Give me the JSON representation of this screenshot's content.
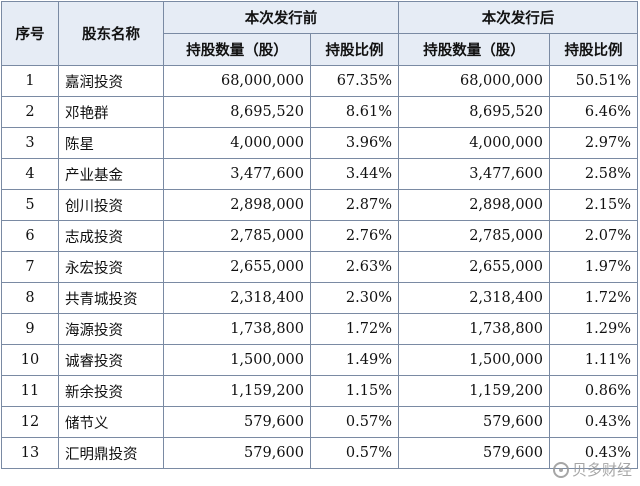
{
  "table": {
    "headers": {
      "no": "序号",
      "name": "股东名称",
      "before": "本次发行前",
      "after": "本次发行后",
      "shares": "持股数量（股）",
      "ratio": "持股比例"
    },
    "rows": [
      {
        "no": "1",
        "name": "嘉润投资",
        "before_shares": "68,000,000",
        "before_ratio": "67.35%",
        "after_shares": "68,000,000",
        "after_ratio": "50.51%"
      },
      {
        "no": "2",
        "name": "邓艳群",
        "before_shares": "8,695,520",
        "before_ratio": "8.61%",
        "after_shares": "8,695,520",
        "after_ratio": "6.46%"
      },
      {
        "no": "3",
        "name": "陈星",
        "before_shares": "4,000,000",
        "before_ratio": "3.96%",
        "after_shares": "4,000,000",
        "after_ratio": "2.97%"
      },
      {
        "no": "4",
        "name": "产业基金",
        "before_shares": "3,477,600",
        "before_ratio": "3.44%",
        "after_shares": "3,477,600",
        "after_ratio": "2.58%"
      },
      {
        "no": "5",
        "name": "创川投资",
        "before_shares": "2,898,000",
        "before_ratio": "2.87%",
        "after_shares": "2,898,000",
        "after_ratio": "2.15%"
      },
      {
        "no": "6",
        "name": "志成投资",
        "before_shares": "2,785,000",
        "before_ratio": "2.76%",
        "after_shares": "2,785,000",
        "after_ratio": "2.07%"
      },
      {
        "no": "7",
        "name": "永宏投资",
        "before_shares": "2,655,000",
        "before_ratio": "2.63%",
        "after_shares": "2,655,000",
        "after_ratio": "1.97%"
      },
      {
        "no": "8",
        "name": "共青城投资",
        "before_shares": "2,318,400",
        "before_ratio": "2.30%",
        "after_shares": "2,318,400",
        "after_ratio": "1.72%"
      },
      {
        "no": "9",
        "name": "海源投资",
        "before_shares": "1,738,800",
        "before_ratio": "1.72%",
        "after_shares": "1,738,800",
        "after_ratio": "1.29%"
      },
      {
        "no": "10",
        "name": "诚睿投资",
        "before_shares": "1,500,000",
        "before_ratio": "1.49%",
        "after_shares": "1,500,000",
        "after_ratio": "1.11%"
      },
      {
        "no": "11",
        "name": "新余投资",
        "before_shares": "1,159,200",
        "before_ratio": "1.15%",
        "after_shares": "1,159,200",
        "after_ratio": "0.86%"
      },
      {
        "no": "12",
        "name": "储节义",
        "before_shares": "579,600",
        "before_ratio": "0.57%",
        "after_shares": "579,600",
        "after_ratio": "0.43%"
      },
      {
        "no": "13",
        "name": "汇明鼎投资",
        "before_shares": "579,600",
        "before_ratio": "0.57%",
        "after_shares": "579,600",
        "after_ratio": "0.43%"
      }
    ]
  },
  "watermark": {
    "text": "贝多财经",
    "icon": "at-icon"
  }
}
